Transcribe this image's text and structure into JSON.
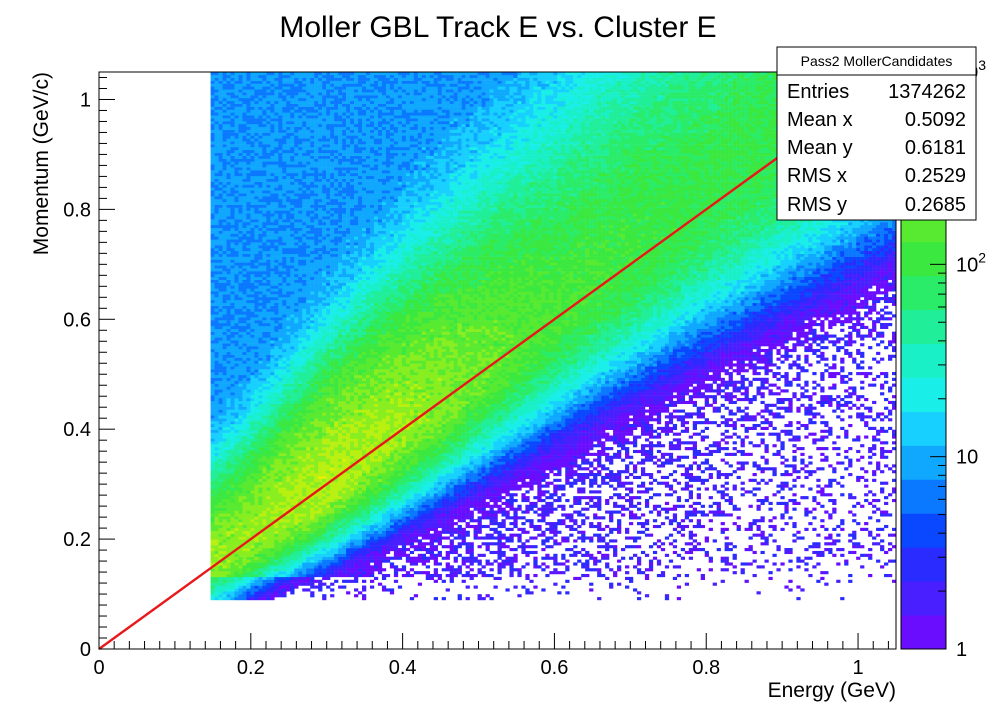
{
  "chart_data": {
    "type": "heatmap",
    "title": "Moller GBL Track E vs. Cluster E",
    "xlabel": "Energy (GeV)",
    "ylabel": "Momentum (GeV/c)",
    "xlim": [
      0,
      1.05
    ],
    "ylim": [
      0,
      1.05
    ],
    "x_ticks": [
      "0",
      "0.2",
      "0.4",
      "0.6",
      "0.8",
      "1"
    ],
    "y_ticks": [
      "0",
      "0.2",
      "0.4",
      "0.6",
      "0.8",
      "1"
    ],
    "z_scale": "log",
    "z_range": [
      1,
      1000
    ],
    "z_ticks": [
      {
        "value": 1,
        "label": "1",
        "sup": ""
      },
      {
        "value": 10,
        "label": "10",
        "sup": ""
      },
      {
        "value": 100,
        "label": "10",
        "sup": "2"
      },
      {
        "value": 1000,
        "label": "10",
        "sup": "3"
      }
    ],
    "x_cut": 0.145,
    "reference_line": {
      "from": [
        0,
        0
      ],
      "to": [
        1,
        1
      ],
      "color": "#e8181a"
    },
    "band": {
      "ridge": "y = x",
      "peak_x": 0.3,
      "populated_region": "x >= 0.145, y >= 0.1",
      "ridge_counts_at_x": [
        {
          "x": 0.2,
          "count": 260
        },
        {
          "x": 0.3,
          "count": 360
        },
        {
          "x": 0.4,
          "count": 280
        },
        {
          "x": 0.5,
          "count": 180
        },
        {
          "x": 0.6,
          "count": 120
        },
        {
          "x": 0.8,
          "count": 90
        },
        {
          "x": 1.0,
          "count": 90
        }
      ]
    },
    "stats": {
      "name": "Pass2 MollerCandidates",
      "rows": [
        {
          "label": "Entries",
          "value": "1374262"
        },
        {
          "label": "Mean x",
          "value": "0.5092"
        },
        {
          "label": "Mean y",
          "value": "0.6181"
        },
        {
          "label": "RMS x",
          "value": "0.2529"
        },
        {
          "label": "RMS y",
          "value": "0.2685"
        }
      ]
    },
    "grid": false,
    "legend": "none"
  }
}
